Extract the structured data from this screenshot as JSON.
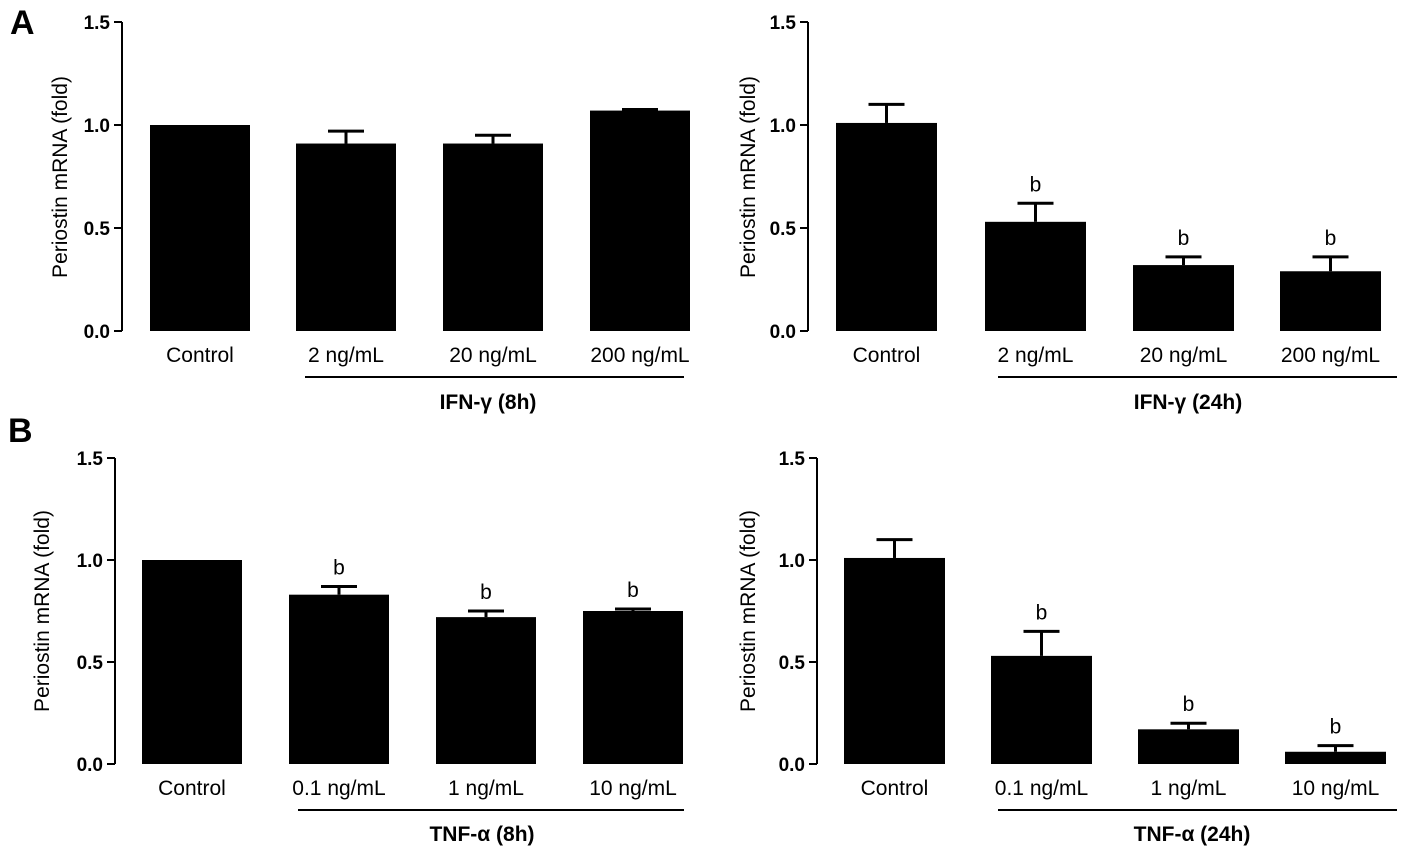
{
  "panels": [
    "A",
    "B"
  ],
  "charts": [
    {
      "type": "bar",
      "panel": "A",
      "title": "",
      "ylabel": "Periostin mRNA (fold)",
      "group_label": "IFN-γ (8h)",
      "yticks": [
        "0.0",
        "0.5",
        "1.0",
        "1.5"
      ],
      "ylim": [
        0,
        1.5
      ],
      "categories": [
        "Control",
        "2 ng/mL",
        "20 ng/mL",
        "200 ng/mL"
      ],
      "values": [
        1.0,
        0.91,
        0.91,
        1.07
      ],
      "errors": [
        0.0,
        0.06,
        0.04,
        0.005
      ],
      "annotations": [
        "",
        "",
        "",
        ""
      ]
    },
    {
      "type": "bar",
      "panel": "A",
      "title": "",
      "ylabel": "Periostin mRNA (fold)",
      "group_label": "IFN-γ (24h)",
      "yticks": [
        "0.0",
        "0.5",
        "1.0",
        "1.5"
      ],
      "ylim": [
        0,
        1.5
      ],
      "categories": [
        "Control",
        "2 ng/mL",
        "20 ng/mL",
        "200 ng/mL"
      ],
      "values": [
        1.01,
        0.53,
        0.32,
        0.29
      ],
      "errors": [
        0.09,
        0.09,
        0.04,
        0.07
      ],
      "annotations": [
        "",
        "b",
        "b",
        "b"
      ]
    },
    {
      "type": "bar",
      "panel": "B",
      "title": "",
      "ylabel": "Periostin mRNA (fold)",
      "group_label": "TNF-α (8h)",
      "yticks": [
        "0.0",
        "0.5",
        "1.0",
        "1.5"
      ],
      "ylim": [
        0,
        1.5
      ],
      "categories": [
        "Control",
        "0.1 ng/mL",
        "1 ng/mL",
        "10 ng/mL"
      ],
      "values": [
        1.0,
        0.83,
        0.72,
        0.75
      ],
      "errors": [
        0.0,
        0.04,
        0.03,
        0.01
      ],
      "annotations": [
        "",
        "b",
        "b",
        "b"
      ]
    },
    {
      "type": "bar",
      "panel": "B",
      "title": "",
      "ylabel": "Periostin mRNA (fold)",
      "group_label": "TNF-α (24h)",
      "yticks": [
        "0.0",
        "0.5",
        "1.0",
        "1.5"
      ],
      "ylim": [
        0,
        1.5
      ],
      "categories": [
        "Control",
        "0.1 ng/mL",
        "1 ng/mL",
        "10 ng/mL"
      ],
      "values": [
        1.01,
        0.53,
        0.17,
        0.06
      ],
      "errors": [
        0.09,
        0.12,
        0.03,
        0.03
      ],
      "annotations": [
        "",
        "b",
        "b",
        "b"
      ]
    }
  ],
  "chart_data": [
    {
      "type": "bar",
      "title": "",
      "xlabel": "IFN-γ (8h)",
      "ylabel": "Periostin mRNA (fold)",
      "ylim": [
        0,
        1.5
      ],
      "categories": [
        "Control",
        "2 ng/mL",
        "20 ng/mL",
        "200 ng/mL"
      ],
      "values": [
        1.0,
        0.91,
        0.91,
        1.07
      ],
      "errors": [
        0.0,
        0.06,
        0.04,
        0.005
      ],
      "annotations": [
        "",
        "",
        "",
        ""
      ]
    },
    {
      "type": "bar",
      "title": "",
      "xlabel": "IFN-γ (24h)",
      "ylabel": "Periostin mRNA (fold)",
      "ylim": [
        0,
        1.5
      ],
      "categories": [
        "Control",
        "2 ng/mL",
        "20 ng/mL",
        "200 ng/mL"
      ],
      "values": [
        1.01,
        0.53,
        0.32,
        0.29
      ],
      "errors": [
        0.09,
        0.09,
        0.04,
        0.07
      ],
      "annotations": [
        "",
        "b",
        "b",
        "b"
      ]
    },
    {
      "type": "bar",
      "title": "",
      "xlabel": "TNF-α (8h)",
      "ylabel": "Periostin mRNA (fold)",
      "ylim": [
        0,
        1.5
      ],
      "categories": [
        "Control",
        "0.1 ng/mL",
        "1 ng/mL",
        "10 ng/mL"
      ],
      "values": [
        1.0,
        0.83,
        0.72,
        0.75
      ],
      "errors": [
        0.0,
        0.04,
        0.03,
        0.01
      ],
      "annotations": [
        "",
        "b",
        "b",
        "b"
      ]
    },
    {
      "type": "bar",
      "title": "",
      "xlabel": "TNF-α (24h)",
      "ylabel": "Periostin mRNA (fold)",
      "ylim": [
        0,
        1.5
      ],
      "categories": [
        "Control",
        "0.1 ng/mL",
        "1 ng/mL",
        "10 ng/mL"
      ],
      "values": [
        1.01,
        0.53,
        0.17,
        0.06
      ],
      "errors": [
        0.09,
        0.12,
        0.03,
        0.03
      ],
      "annotations": [
        "",
        "b",
        "b",
        "b"
      ]
    }
  ]
}
